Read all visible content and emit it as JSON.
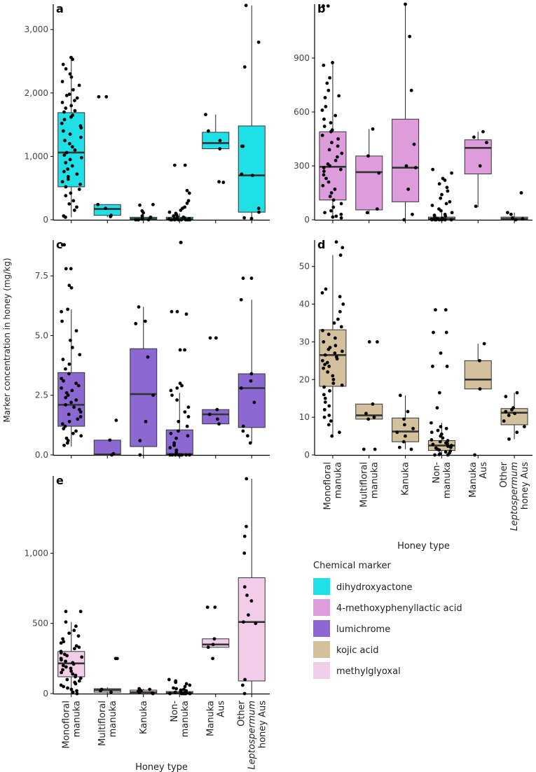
{
  "figure": {
    "y_axis_title": "Marker concentration in honey (mg/kg)",
    "x_axis_title": "Honey type",
    "categories": [
      "Monofloral\nmanuka",
      "Multifloral\nmanuka",
      "Kanuka",
      "Non-\nmanuka",
      "Manuka\nAus",
      "Other\n*Leptospermum*\nhoney Aus"
    ]
  },
  "legend": {
    "title": "Chemical marker",
    "items": [
      {
        "label": "dihydroxyactone",
        "color": "#1ee0e6"
      },
      {
        "label": "4-methoxyphenyllactic acid",
        "color": "#dd9ddd"
      },
      {
        "label": "lumichrome",
        "color": "#8c68d2"
      },
      {
        "label": "kojic acid",
        "color": "#d3c09c"
      },
      {
        "label": "methylglyoxal",
        "color": "#f1cdea"
      }
    ]
  },
  "chart_data": [
    {
      "panel": "a",
      "type": "box",
      "marker": "dihydroxyactone",
      "color": "#1ee0e6",
      "ylim": [
        0,
        3400
      ],
      "ticks": [
        0,
        1000,
        2000,
        3000
      ],
      "tick_labels": [
        "0",
        "1,000",
        "2,000",
        "3,000"
      ],
      "boxes": [
        {
          "q1": 520,
          "median": 1060,
          "q3": 1690,
          "lo": 40,
          "hi": 2560
        },
        {
          "q1": 70,
          "median": 170,
          "q3": 240,
          "lo": 40,
          "hi": 240
        },
        {
          "q1": 0,
          "median": 15,
          "q3": 40,
          "lo": 0,
          "hi": 100
        },
        {
          "q1": 0,
          "median": 10,
          "q3": 40,
          "lo": 0,
          "hi": 100
        },
        {
          "q1": 1120,
          "median": 1210,
          "q3": 1380,
          "lo": 1120,
          "hi": 1660
        },
        {
          "q1": 120,
          "median": 700,
          "q3": 1480,
          "lo": 0,
          "hi": 3380
        }
      ],
      "points": [
        [
          2560,
          2530,
          2450,
          2380,
          2300,
          2250,
          2180,
          2120,
          2050,
          1980,
          1960,
          1920,
          1880,
          1850,
          1800,
          1760,
          1720,
          1700,
          1650,
          1620,
          1580,
          1520,
          1480,
          1450,
          1400,
          1350,
          1300,
          1250,
          1200,
          1150,
          1100,
          1060,
          1020,
          980,
          950,
          900,
          850,
          800,
          760,
          720,
          680,
          640,
          600,
          560,
          520,
          480,
          420,
          380,
          300,
          250,
          200,
          150,
          60,
          40
        ],
        [
          1940,
          1940,
          240,
          180,
          70,
          50
        ],
        [
          240,
          230,
          140,
          110,
          60,
          40,
          20,
          10,
          0,
          0,
          0,
          0
        ],
        [
          860,
          860,
          460,
          420,
          300,
          260,
          200,
          180,
          150,
          120,
          100,
          80,
          60,
          50,
          40,
          30,
          20,
          15,
          10,
          8,
          5,
          3,
          0,
          0,
          0,
          0,
          0,
          0,
          0,
          0,
          0,
          0
        ],
        [
          1660,
          1400,
          1250,
          1120,
          600,
          590
        ],
        [
          3380,
          2800,
          2410,
          1160,
          1160,
          720,
          700,
          180,
          120,
          30,
          20
        ]
      ]
    },
    {
      "panel": "b",
      "type": "box",
      "marker": "4-methoxyphenyllactic acid",
      "color": "#dd9ddd",
      "ylim": [
        0,
        1200
      ],
      "ticks": [
        0,
        300,
        600,
        900
      ],
      "tick_labels": [
        "0",
        "300",
        "600",
        "900"
      ],
      "boxes": [
        {
          "q1": 110,
          "median": 295,
          "q3": 490,
          "lo": 10,
          "hi": 875
        },
        {
          "q1": 55,
          "median": 265,
          "q3": 355,
          "lo": 30,
          "hi": 505
        },
        {
          "q1": 100,
          "median": 290,
          "q3": 560,
          "lo": 0,
          "hi": 1200
        },
        {
          "q1": 0,
          "median": 5,
          "q3": 15,
          "lo": 0,
          "hi": 40
        },
        {
          "q1": 255,
          "median": 400,
          "q3": 445,
          "lo": 70,
          "hi": 490
        },
        {
          "q1": 0,
          "median": 5,
          "q3": 15,
          "lo": 0,
          "hi": 40
        }
      ],
      "points": [
        [
          1190,
          1190,
          875,
          860,
          790,
          760,
          720,
          690,
          680,
          630,
          610,
          580,
          560,
          540,
          520,
          500,
          490,
          470,
          450,
          430,
          410,
          390,
          370,
          350,
          330,
          310,
          300,
          290,
          280,
          270,
          250,
          230,
          210,
          190,
          170,
          150,
          130,
          110,
          90,
          70,
          50,
          40,
          30,
          20,
          15,
          10
        ],
        [
          505,
          355,
          260,
          60,
          40
        ],
        [
          1200,
          1020,
          720,
          420,
          300,
          290,
          170,
          30,
          0
        ],
        [
          280,
          260,
          230,
          220,
          200,
          180,
          160,
          140,
          120,
          100,
          90,
          80,
          60,
          50,
          40,
          30,
          25,
          20,
          15,
          10,
          8,
          5,
          3,
          0,
          0,
          0,
          0,
          0,
          0,
          0
        ],
        [
          490,
          460,
          430,
          300,
          75
        ],
        [
          150,
          40,
          30,
          10,
          5,
          0
        ]
      ]
    },
    {
      "panel": "c",
      "type": "box",
      "marker": "lumichrome",
      "color": "#8c68d2",
      "ylim": [
        0,
        9.0
      ],
      "ticks": [
        0,
        2.5,
        5.0,
        7.5
      ],
      "tick_labels": [
        "0.0",
        "2.5",
        "5.0",
        "7.5"
      ],
      "boxes": [
        {
          "q1": 1.2,
          "median": 2.1,
          "q3": 3.45,
          "lo": 0.35,
          "hi": 6.1
        },
        {
          "q1": 0,
          "median": 0.02,
          "q3": 0.62,
          "lo": 0,
          "hi": 0.62
        },
        {
          "q1": 0.35,
          "median": 2.55,
          "q3": 4.45,
          "lo": 0,
          "hi": 6.2
        },
        {
          "q1": 0,
          "median": 0.03,
          "q3": 1.05,
          "lo": 0,
          "hi": 2.6
        },
        {
          "q1": 1.3,
          "median": 1.7,
          "q3": 1.9,
          "lo": 1.3,
          "hi": 1.9
        },
        {
          "q1": 1.15,
          "median": 2.8,
          "q3": 3.4,
          "lo": 0.5,
          "hi": 6.5
        }
      ],
      "points": [
        [
          8.8,
          8.8,
          7.8,
          7.8,
          7.1,
          7.0,
          6.1,
          6.0,
          5.6,
          5.2,
          4.8,
          4.5,
          4.2,
          4.0,
          3.8,
          3.6,
          3.4,
          3.2,
          3.1,
          3.0,
          2.9,
          2.8,
          2.7,
          2.6,
          2.5,
          2.4,
          2.3,
          2.2,
          2.1,
          2.0,
          1.9,
          1.8,
          1.7,
          1.6,
          1.5,
          1.4,
          1.3,
          1.2,
          1.1,
          1.0,
          0.9,
          0.8,
          0.7,
          0.6,
          0.5,
          0.4
        ],
        [
          1.45,
          0.62,
          0.05,
          0
        ],
        [
          6.2,
          5.6,
          5.5,
          4.1,
          2.5,
          1.4,
          0.6,
          0
        ],
        [
          8.9,
          8.9,
          6.0,
          6.0,
          5.9,
          4.4,
          4.4,
          3.0,
          2.9,
          2.8,
          2.7,
          2.5,
          2.3,
          2.0,
          1.8,
          1.6,
          1.4,
          1.2,
          1.0,
          0.9,
          0.8,
          0.7,
          0.5,
          0.4,
          0.3,
          0.2,
          0.1,
          0,
          0,
          0,
          0,
          0,
          0,
          0,
          0,
          0
        ],
        [
          4.9,
          4.9,
          1.9,
          1.7,
          1.5,
          1.3
        ],
        [
          7.4,
          7.4,
          6.5,
          3.4,
          3.1,
          2.8,
          2.2,
          1.2,
          1.0,
          0.8,
          0.5
        ]
      ]
    },
    {
      "panel": "d",
      "type": "box",
      "marker": "kojic acid",
      "color": "#d3c09c",
      "ylim": [
        0,
        57
      ],
      "ticks": [
        0,
        10,
        20,
        30,
        40,
        50
      ],
      "tick_labels": [
        "0",
        "10",
        "20",
        "30",
        "40",
        "50"
      ],
      "boxes": [
        {
          "q1": 18.2,
          "median": 26.5,
          "q3": 33.2,
          "lo": 5,
          "hi": 53
        },
        {
          "q1": 9.5,
          "median": 10.5,
          "q3": 13.5,
          "lo": 9.5,
          "hi": 13.5
        },
        {
          "q1": 3.5,
          "median": 6.2,
          "q3": 9.8,
          "lo": 1.5,
          "hi": 15.8
        },
        {
          "q1": 1.2,
          "median": 2.5,
          "q3": 3.8,
          "lo": 0,
          "hi": 8.5
        },
        {
          "q1": 17.5,
          "median": 20.0,
          "q3": 25.0,
          "lo": 17.5,
          "hi": 29.5
        },
        {
          "q1": 8.0,
          "median": 11.2,
          "q3": 12.3,
          "lo": 4.2,
          "hi": 16.5
        }
      ],
      "points": [
        [
          56.5,
          55.0,
          53.0,
          44.0,
          43.0,
          42.0,
          40.0,
          38.0,
          36.0,
          35.0,
          34.0,
          33.0,
          32.0,
          31.0,
          30.0,
          29.0,
          28.5,
          28.0,
          27.5,
          27.0,
          26.5,
          26.0,
          25.5,
          25.0,
          24.5,
          24.0,
          23.5,
          23.0,
          22.0,
          21.0,
          20.0,
          19.0,
          18.5,
          18.0,
          17.0,
          16.0,
          15.0,
          14.0,
          13.0,
          12.0,
          10.5,
          10.0,
          9.0,
          8.0,
          6.0,
          5.0
        ],
        [
          30.0,
          30.0,
          13.5,
          11.0,
          10.0,
          9.5,
          1.5,
          1.5
        ],
        [
          15.8,
          11.5,
          9.5,
          8.0,
          7.0,
          6.0,
          5.0,
          3.5,
          2.0,
          1.5
        ],
        [
          38.5,
          38.5,
          32.5,
          32.5,
          27.0,
          23.5,
          23.5,
          16.5,
          12.5,
          8.5,
          7.5,
          7.0,
          6.5,
          6.0,
          5.5,
          5.0,
          4.5,
          4.0,
          3.8,
          3.5,
          3.2,
          3.0,
          2.8,
          2.5,
          2.3,
          2.0,
          1.8,
          1.5,
          1.3,
          1.0,
          0.8,
          0.5,
          0.3,
          0.1,
          0,
          0
        ],
        [
          29.5,
          25.0,
          17.5,
          0
        ],
        [
          16.5,
          15.5,
          12.5,
          12.0,
          11.5,
          11.0,
          10.5,
          9.0,
          7.5,
          6.0,
          4.2
        ]
      ]
    },
    {
      "panel": "e",
      "type": "box",
      "marker": "methylglyoxal",
      "color": "#f1cdea",
      "ylim": [
        0,
        1550
      ],
      "ticks": [
        0,
        500,
        1000
      ],
      "tick_labels": [
        "0",
        "500",
        "1,000"
      ],
      "boxes": [
        {
          "q1": 120,
          "median": 215,
          "q3": 300,
          "lo": 0,
          "hi": 510
        },
        {
          "q1": 10,
          "median": 25,
          "q3": 35,
          "lo": 0,
          "hi": 45
        },
        {
          "q1": 0,
          "median": 10,
          "q3": 25,
          "lo": 0,
          "hi": 35
        },
        {
          "q1": 0,
          "median": 5,
          "q3": 15,
          "lo": 0,
          "hi": 30
        },
        {
          "q1": 330,
          "median": 350,
          "q3": 390,
          "lo": 330,
          "hi": 390
        },
        {
          "q1": 90,
          "median": 510,
          "q3": 825,
          "lo": 0,
          "hi": 1530
        }
      ],
      "points": [
        [
          585,
          585,
          510,
          480,
          450,
          430,
          410,
          390,
          370,
          360,
          340,
          330,
          320,
          300,
          290,
          280,
          270,
          260,
          250,
          240,
          230,
          220,
          210,
          200,
          190,
          180,
          170,
          160,
          150,
          140,
          130,
          120,
          110,
          100,
          90,
          80,
          70,
          60,
          50,
          40,
          30,
          20,
          10,
          0
        ],
        [
          250,
          250,
          30,
          20,
          10
        ],
        [
          35,
          30,
          25,
          20,
          15,
          10,
          5,
          0
        ],
        [
          100,
          90,
          80,
          70,
          60,
          50,
          40,
          35,
          30,
          25,
          20,
          15,
          10,
          8,
          5,
          3,
          0,
          0,
          0,
          0,
          0,
          0
        ],
        [
          615,
          615,
          390,
          350,
          330,
          250
        ],
        [
          1530,
          1190,
          1120,
          1000,
          760,
          700,
          660,
          560,
          510,
          500,
          100,
          60,
          0
        ]
      ]
    }
  ]
}
